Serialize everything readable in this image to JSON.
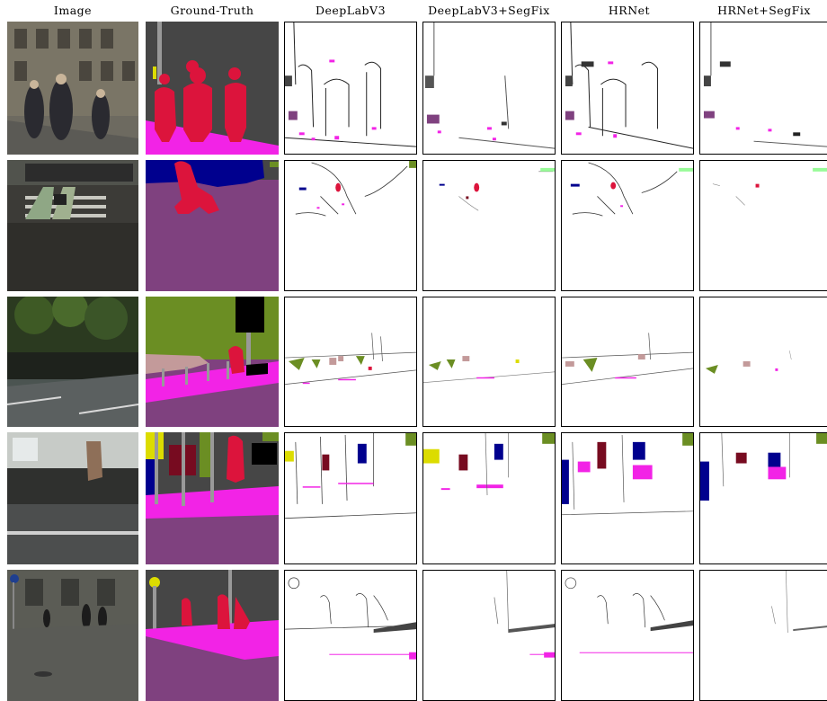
{
  "figure": {
    "column_headers": {
      "image": "Image",
      "ground_truth": "Ground-Truth",
      "deeplabv3": "DeepLabV3",
      "deeplabv3_segfix": "DeepLabV3+SegFix",
      "hrnet": "HRNet",
      "hrnet_segfix": "HRNet+SegFix"
    },
    "palette": {
      "road": "#7f417f",
      "sidewalk": "#f223e6",
      "building": "#464646",
      "pole": "#999999",
      "traffic_sign": "#dcdc00",
      "vegetation": "#6b8e23",
      "person": "#dc143c",
      "car": "#00008e",
      "wall": "#c39a9a",
      "bicycle": "#770b20",
      "sky": "#98fb98"
    },
    "rows": [
      {
        "scene": "pedestrians-on-sidewalk"
      },
      {
        "scene": "crosswalk-with-car"
      },
      {
        "scene": "trees-and-bollards"
      },
      {
        "scene": "signs-and-cyclists"
      },
      {
        "scene": "street-with-pedestrians"
      }
    ]
  }
}
